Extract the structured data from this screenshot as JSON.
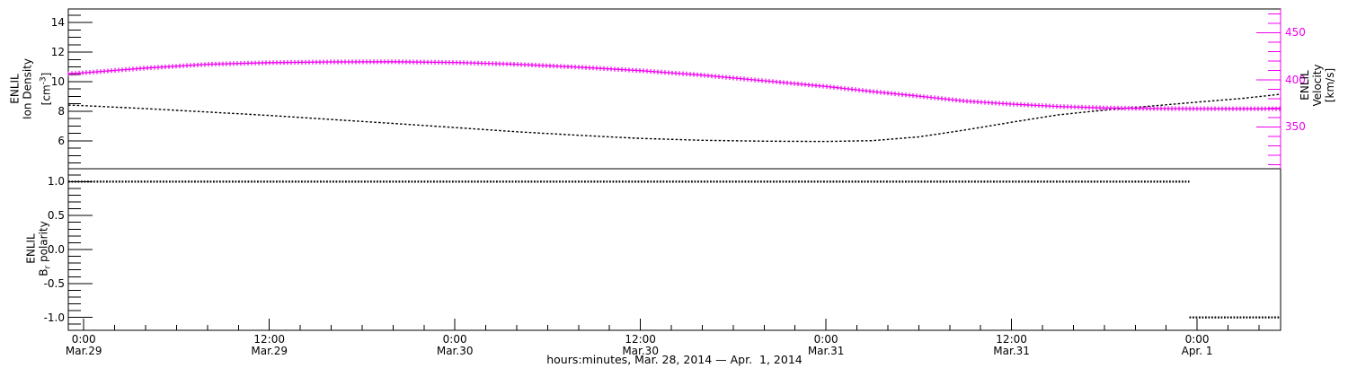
{
  "figure": {
    "background": "#ffffff",
    "frame_color": "#000000"
  },
  "colors": {
    "density": "#000000",
    "velocity": "#f000f0",
    "polarity": "#000000"
  },
  "x_axis": {
    "title": "hours:minutes, Mar. 28, 2014 — Apr.  1, 2014",
    "range_hours": [
      -1,
      77.4
    ],
    "minor_step_hours": 2,
    "major_ticks": [
      {
        "hour": 0,
        "time": "0:00",
        "date": "Mar.29"
      },
      {
        "hour": 12,
        "time": "12:00",
        "date": "Mar.29"
      },
      {
        "hour": 24,
        "time": "0:00",
        "date": "Mar.30"
      },
      {
        "hour": 36,
        "time": "12:00",
        "date": "Mar.30"
      },
      {
        "hour": 48,
        "time": "0:00",
        "date": "Mar.31"
      },
      {
        "hour": 60,
        "time": "12:00",
        "date": "Mar.31"
      },
      {
        "hour": 72,
        "time": "0:00",
        "date": "Apr. 1"
      }
    ]
  },
  "labels": {
    "density_axis": {
      "line1": "ENLIL",
      "line2": "Ion Density",
      "unit_pre": "[cm",
      "unit_sup": "-3",
      "unit_post": "]"
    },
    "velocity_axis": {
      "line1": "ENLIL",
      "line2": "Velocity",
      "line3": "[km/s]"
    },
    "polarity_axis": {
      "line1": "ENLIL",
      "b": "B",
      "sub": "r",
      "rest": " polarity"
    }
  },
  "chart_data": [
    {
      "type": "line",
      "panel": "top",
      "x_unit": "hours since Mar 29 2014 00:00",
      "x_hours": [
        -1,
        0,
        4,
        8,
        12,
        16,
        20,
        24,
        28,
        32,
        36,
        40,
        44,
        48,
        51,
        54,
        57,
        60,
        63,
        66,
        69,
        72,
        75,
        77.4
      ],
      "series": [
        {
          "name": "ion_density",
          "legend": "ENLIL Ion Density [cm-3]",
          "axis": "left",
          "style": "dotted",
          "values": [
            8.42,
            8.38,
            8.18,
            7.95,
            7.72,
            7.45,
            7.18,
            6.9,
            6.62,
            6.38,
            6.17,
            6.04,
            5.98,
            5.96,
            6.02,
            6.27,
            6.74,
            7.26,
            7.76,
            8.08,
            8.35,
            8.62,
            8.88,
            9.15
          ]
        },
        {
          "name": "velocity",
          "legend": "ENLIL Velocity [km/s]",
          "axis": "right",
          "style": "plus_markers",
          "values": [
            406.5,
            407.5,
            412.5,
            416.5,
            418.3,
            419.0,
            419.2,
            418.4,
            416.5,
            413.5,
            409.8,
            405.0,
            399.0,
            393.0,
            387.6,
            382.7,
            377.5,
            374.3,
            371.8,
            370.2,
            369.6,
            369.4,
            369.3,
            369.3
          ]
        }
      ],
      "left_axis": {
        "range": [
          4.12,
          14.91
        ],
        "minor_step": 0.5,
        "major_ticks": [
          {
            "value": 6,
            "label": "6"
          },
          {
            "value": 8,
            "label": "8"
          },
          {
            "value": 10,
            "label": "10"
          },
          {
            "value": 12,
            "label": "12"
          },
          {
            "value": 14,
            "label": "14"
          }
        ]
      },
      "right_axis": {
        "range": [
          305.7,
          475.2
        ],
        "minor_step": 10,
        "major_ticks": [
          {
            "value": 350,
            "label": "350"
          },
          {
            "value": 400,
            "label": "400"
          },
          {
            "value": 450,
            "label": "450"
          }
        ]
      }
    },
    {
      "type": "step",
      "panel": "bottom",
      "series": [
        {
          "name": "br_polarity",
          "legend": "ENLIL Br polarity",
          "style": "dotted",
          "segments": [
            {
              "value": 1,
              "start_hour": -1,
              "end_hour": 71.5
            },
            {
              "value": -1,
              "start_hour": 71.5,
              "end_hour": 77.4
            }
          ]
        }
      ],
      "left_axis": {
        "range": [
          -1.19,
          1.19
        ],
        "minor_step": 0.1,
        "major_ticks": [
          {
            "value": 1,
            "label": "1.0"
          },
          {
            "value": 0.5,
            "label": "0.5"
          },
          {
            "value": 0,
            "label": "0.0"
          },
          {
            "value": -0.5,
            "label": "-0.5"
          },
          {
            "value": -1,
            "label": "-1.0"
          }
        ]
      }
    }
  ]
}
